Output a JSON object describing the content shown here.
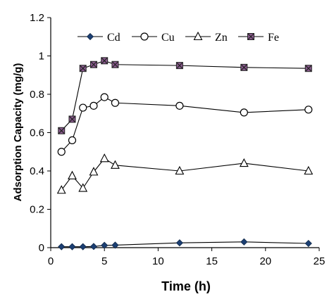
{
  "chart_data": {
    "type": "line",
    "xlabel": "Time (h)",
    "ylabel": "Adsorption Capacity (mg/g)",
    "xlim": [
      0,
      25
    ],
    "ylim": [
      0,
      1.2
    ],
    "xticks": [
      0,
      5,
      10,
      15,
      20,
      25
    ],
    "yticks": [
      0,
      0.2,
      0.4,
      0.6,
      0.8,
      1.0,
      1.2
    ],
    "ytick_labels": [
      "0",
      "0.2",
      "0.4",
      "0.6",
      "0.8",
      "1",
      "1.2"
    ],
    "grid": false,
    "legend": "top",
    "x": [
      1,
      2,
      3,
      4,
      5,
      6,
      12,
      18,
      24
    ],
    "series": [
      {
        "name": "Cd",
        "marker": "diamond",
        "values": [
          0.005,
          0.005,
          0.005,
          0.006,
          0.012,
          0.013,
          0.025,
          0.03,
          0.022
        ]
      },
      {
        "name": "Cu",
        "marker": "circle",
        "values": [
          0.5,
          0.56,
          0.73,
          0.74,
          0.785,
          0.755,
          0.74,
          0.705,
          0.72
        ]
      },
      {
        "name": "Zn",
        "marker": "triangle",
        "values": [
          0.3,
          0.375,
          0.31,
          0.395,
          0.465,
          0.43,
          0.4,
          0.44,
          0.4
        ]
      },
      {
        "name": "Fe",
        "marker": "square-x",
        "values": [
          0.61,
          0.67,
          0.935,
          0.955,
          0.975,
          0.955,
          0.95,
          0.94,
          0.935
        ]
      }
    ]
  }
}
